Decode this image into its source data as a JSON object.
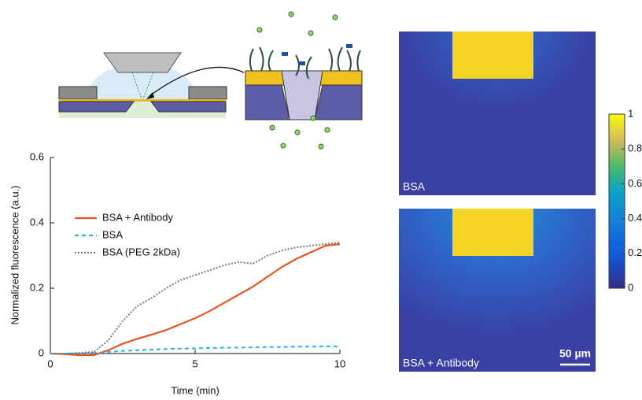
{
  "chart_data": {
    "type": "line",
    "xlabel": "Time (min)",
    "ylabel": "Normalized fluorescence (a.u.)",
    "xlim": [
      0,
      10
    ],
    "ylim": [
      0,
      0.6
    ],
    "xticks": [
      0,
      5,
      10
    ],
    "yticks": [
      0,
      0.2,
      0.4,
      0.6
    ],
    "legend": "upper left",
    "x": [
      0,
      0.5,
      1,
      1.5,
      2,
      2.5,
      3,
      3.5,
      4,
      4.5,
      5,
      5.5,
      6,
      6.5,
      7,
      7.5,
      8,
      8.5,
      9,
      9.5,
      10
    ],
    "series": [
      {
        "name": "BSA + Antibody",
        "color": "#e8531f",
        "style": "solid",
        "values": [
          0,
          -0.002,
          -0.005,
          -0.005,
          0.01,
          0.03,
          0.045,
          0.058,
          0.072,
          0.09,
          0.108,
          0.13,
          0.155,
          0.18,
          0.205,
          0.235,
          0.265,
          0.29,
          0.31,
          0.33,
          0.335
        ]
      },
      {
        "name": "BSA",
        "color": "#2bb3e0",
        "style": "dashed",
        "values": [
          0,
          0,
          0,
          0.002,
          0.005,
          0.008,
          0.01,
          0.012,
          0.014,
          0.015,
          0.016,
          0.017,
          0.018,
          0.018,
          0.019,
          0.02,
          0.02,
          0.021,
          0.021,
          0.022,
          0.022
        ]
      },
      {
        "name": "BSA (PEG 2kDa)",
        "color": "#7a7a7a",
        "style": "dotted",
        "values": [
          0,
          0,
          0.002,
          0.005,
          0.04,
          0.1,
          0.145,
          0.17,
          0.2,
          0.225,
          0.24,
          0.255,
          0.27,
          0.28,
          0.275,
          0.3,
          0.315,
          0.325,
          0.33,
          0.335,
          0.34
        ]
      }
    ]
  },
  "colorbar": {
    "ylim": [
      0,
      1
    ],
    "yticks": [
      0,
      0.2,
      0.4,
      0.6,
      0.8,
      1
    ]
  },
  "images": [
    {
      "label": "BSA"
    },
    {
      "label": "BSA + Antibody"
    }
  ],
  "scale_bar": "50 µm"
}
